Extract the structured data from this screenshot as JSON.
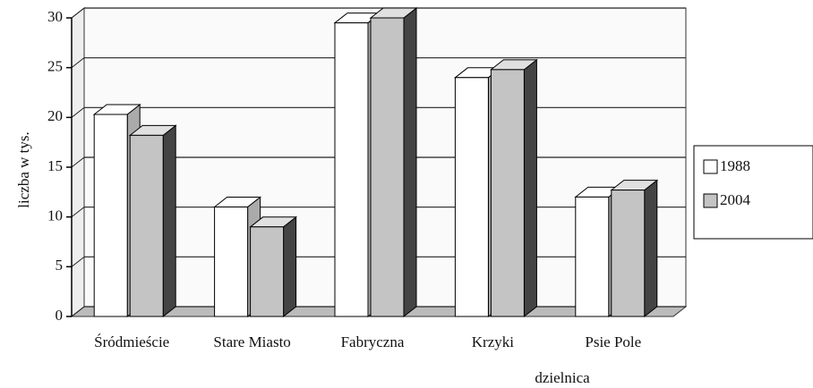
{
  "chart_data": {
    "type": "bar3d",
    "categories": [
      "Śródmieście",
      "Stare Miasto",
      "Fabryczna",
      "Krzyki",
      "Psie Pole"
    ],
    "series": [
      {
        "name": "1988",
        "color": "#ffffff",
        "values": [
          20.3,
          11,
          29.5,
          24,
          12
        ]
      },
      {
        "name": "2004",
        "color": "#c4c4c4",
        "values": [
          18.2,
          9,
          30,
          24.8,
          12.7
        ]
      }
    ],
    "ylabel": "liczba w tys.",
    "xlabel": "dzielnica",
    "ylim": [
      0,
      30
    ],
    "yticks": [
      0,
      5,
      10,
      15,
      20,
      25,
      30
    ],
    "grid": true,
    "legend": "right"
  }
}
